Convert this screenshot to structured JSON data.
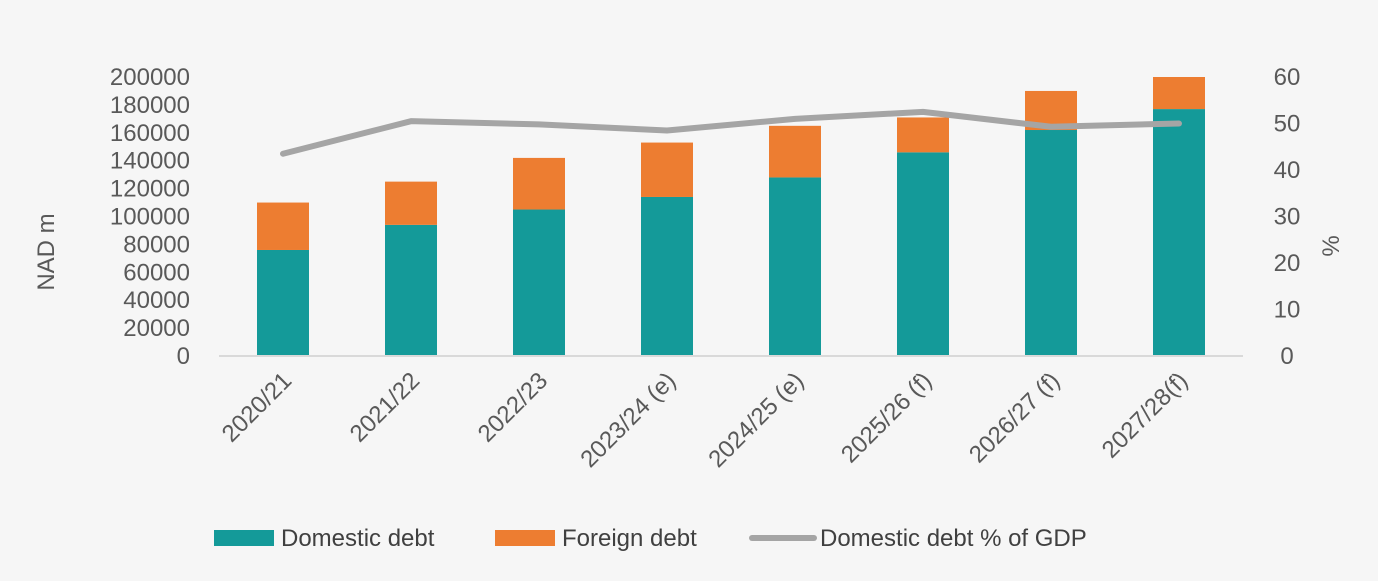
{
  "chart_data": {
    "type": "bar",
    "stacked": true,
    "categories": [
      "2020/21",
      "2021/22",
      "2022/23",
      "2023/24 (e)",
      "2024/25 (e)",
      "2025/26 (f)",
      "2026/27 (f)",
      "2027/28(f)"
    ],
    "series": [
      {
        "name": "Domestic debt",
        "type": "bar",
        "axis": "left",
        "color": "#149a99",
        "values": [
          76000,
          94000,
          105000,
          114000,
          128000,
          146000,
          162000,
          177000
        ]
      },
      {
        "name": "Foreign debt",
        "type": "bar",
        "axis": "left",
        "color": "#ed7d31",
        "values": [
          34000,
          31000,
          37000,
          39000,
          37000,
          25000,
          28000,
          23000
        ]
      },
      {
        "name": "Domestic debt % of GDP",
        "type": "line",
        "axis": "right",
        "color": "#a5a5a5",
        "values": [
          43.5,
          50.5,
          49.8,
          48.5,
          51.0,
          52.5,
          49.3,
          50.0
        ]
      }
    ],
    "ylabel": "NAD m",
    "y2label": "%",
    "ylim": [
      0,
      200000
    ],
    "y2lim": [
      0,
      60
    ],
    "yticks": [
      "0",
      "20000",
      "40000",
      "60000",
      "80000",
      "100000",
      "120000",
      "140000",
      "160000",
      "180000",
      "200000"
    ],
    "y2ticks": [
      "0",
      "10",
      "20",
      "30",
      "40",
      "50",
      "60"
    ],
    "grid": false,
    "legend_position": "bottom"
  }
}
